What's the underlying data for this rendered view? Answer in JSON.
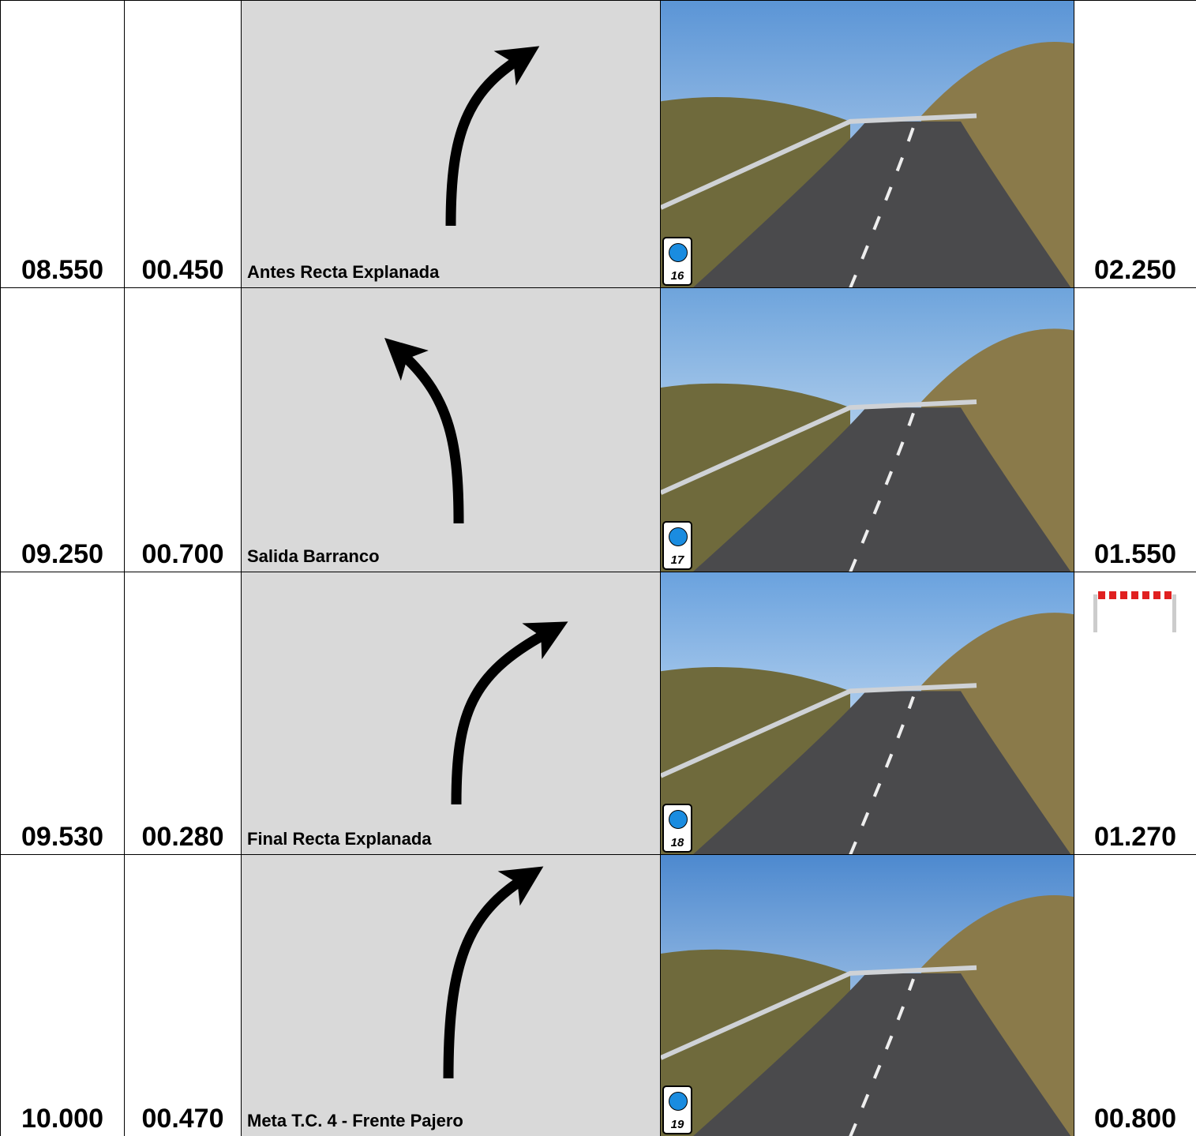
{
  "rows": [
    {
      "total": "08.550",
      "partial": "00.450",
      "description": "Antes Recta Explanada",
      "photo_marker": "16",
      "remaining": "02.250"
    },
    {
      "total": "09.250",
      "partial": "00.700",
      "description": "Salida Barranco",
      "photo_marker": "17",
      "remaining": "01.550"
    },
    {
      "total": "09.530",
      "partial": "00.280",
      "description": "Final Recta Explanada",
      "photo_marker": "18",
      "remaining": "01.270"
    },
    {
      "total": "10.000",
      "partial": "00.470",
      "description": "Meta T.C. 4 - Frente Pajero",
      "photo_marker": "19",
      "remaining": "00.800"
    }
  ]
}
